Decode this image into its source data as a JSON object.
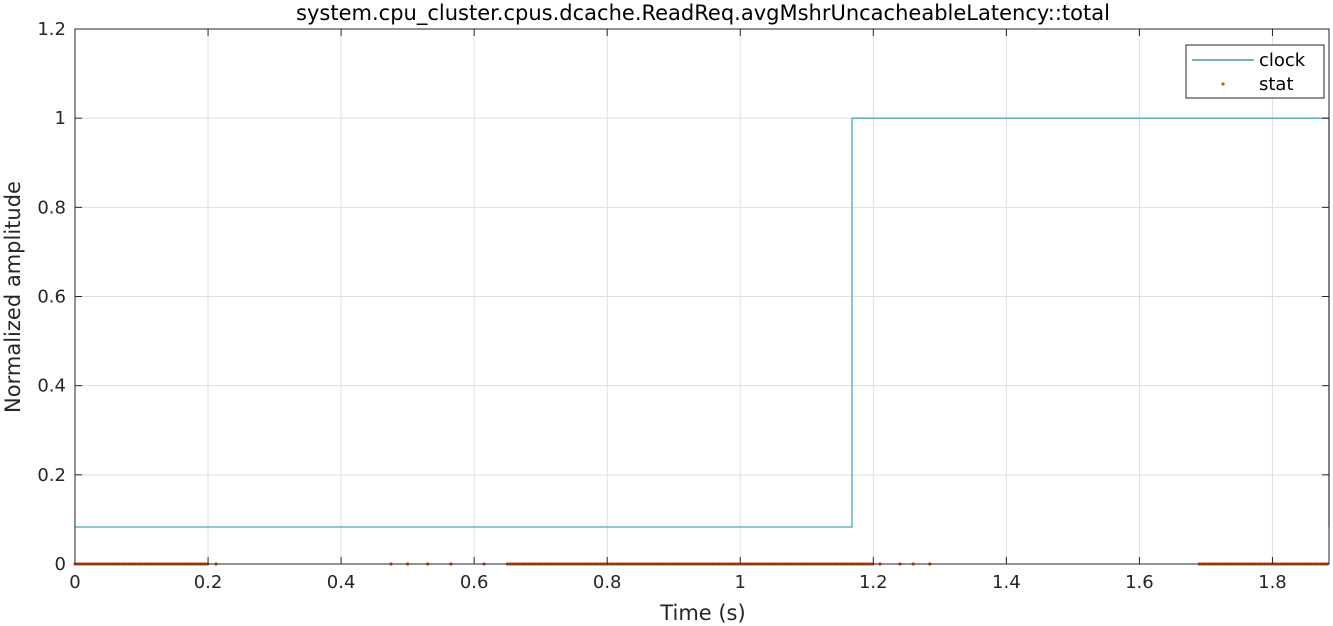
{
  "chart_data": {
    "type": "line",
    "title": "system.cpu_cluster.cpus.dcache.ReadReq.avgMshrUncacheableLatency::total",
    "xlabel": "Time (s)",
    "ylabel": "Normalized amplitude",
    "xlim": [
      0,
      1.885
    ],
    "ylim": [
      0,
      1.2
    ],
    "xticks": [
      0,
      0.2,
      0.4,
      0.6,
      0.8,
      1,
      1.2,
      1.4,
      1.6,
      1.8
    ],
    "xtick_labels": [
      "0",
      "0.2",
      "0.4",
      "0.6",
      "0.8",
      "1",
      "1.2",
      "1.4",
      "1.6",
      "1.8"
    ],
    "yticks": [
      0,
      0.2,
      0.4,
      0.6,
      0.8,
      1,
      1.2
    ],
    "ytick_labels": [
      "0",
      "0.2",
      "0.4",
      "0.6",
      "0.8",
      "1",
      "1.2"
    ],
    "grid": true,
    "legend_position": "top-right",
    "series": [
      {
        "name": "clock",
        "style": "step-line",
        "color": "#4fa3c4",
        "legend_color": "#1a8a8a",
        "x": [
          0,
          1.168,
          1.168,
          1.885,
          1.885
        ],
        "y": [
          0.083,
          0.083,
          1,
          1,
          0.083
        ]
      },
      {
        "name": "stat",
        "style": "markers",
        "color": "#d95319",
        "y_value": 0,
        "x_ranges": [
          [
            0.0,
            0.2
          ],
          [
            0.65,
            1.2
          ],
          [
            1.69,
            1.885
          ]
        ],
        "x_points": [
          0.212,
          0.475,
          0.5,
          0.53,
          0.565,
          0.615,
          1.21,
          1.24,
          1.26,
          1.285
        ]
      }
    ]
  }
}
